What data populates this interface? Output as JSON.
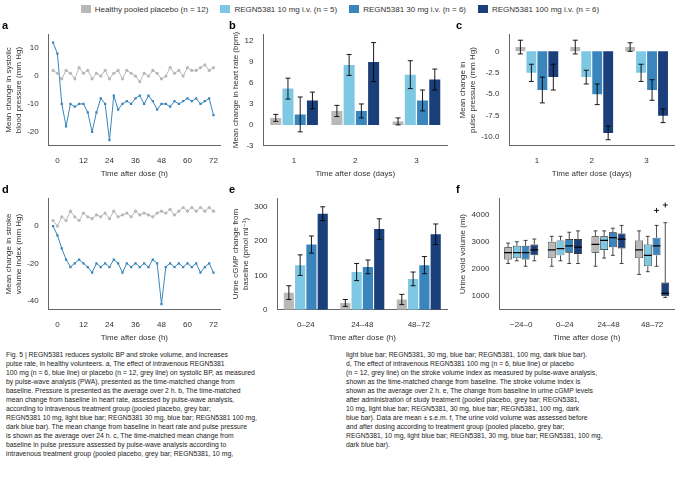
{
  "chart_data": [
    {
      "type": "line",
      "title": "a",
      "x_label": "Time after dose (h)",
      "y_label": "Mean change in systolic\nblood pressure (mm Hg)",
      "xlim": [
        -4,
        75
      ],
      "xticks": [
        0,
        12,
        24,
        36,
        48,
        60,
        72
      ],
      "ylim": [
        -25,
        15
      ],
      "yticks": [
        -20,
        -10,
        0,
        10
      ],
      "grid": false,
      "x": [
        -2,
        0,
        2,
        4,
        6,
        8,
        10,
        12,
        14,
        16,
        18,
        20,
        22,
        24,
        26,
        28,
        30,
        32,
        34,
        36,
        38,
        40,
        42,
        44,
        46,
        48,
        50,
        52,
        54,
        56,
        58,
        60,
        62,
        64,
        66,
        68,
        70,
        72
      ],
      "series": [
        {
          "color": "#b8b8b8",
          "marker": "circle",
          "values": [
            2,
            1,
            -1,
            2,
            1,
            -1,
            3,
            1,
            2,
            -1,
            1,
            0,
            2,
            -1,
            1,
            2,
            -1,
            2,
            1,
            0,
            -2,
            1,
            0,
            2,
            1,
            -1,
            0,
            3,
            1,
            2,
            0,
            3,
            2,
            2,
            3,
            4,
            2,
            3
          ]
        },
        {
          "color": "#3a86bc",
          "marker": "square",
          "values": [
            12,
            8,
            -10,
            -18,
            -10,
            -11,
            -10,
            -10,
            -13,
            -20,
            -13,
            -8,
            -10,
            -23,
            -7,
            -12,
            -10,
            -9,
            -10,
            -8,
            -7,
            -10,
            -7,
            -9,
            -12,
            -10,
            -10,
            -11,
            -9,
            -10,
            -9,
            -8,
            -9,
            -8,
            -10,
            -9,
            -8,
            -14
          ]
        }
      ]
    },
    {
      "type": "bar",
      "title": "b",
      "x_label": "Time after dose (days)",
      "y_label": "Mean change in heart rate (bpm)",
      "categories": [
        1,
        2,
        3
      ],
      "ylim": [
        -3,
        13
      ],
      "yticks": [
        -3,
        0,
        3,
        6,
        9,
        12
      ],
      "grid": false,
      "series": [
        {
          "name": "Healthy pooled placebo (n = 12)",
          "color": "#b8b8b8",
          "values": [
            1.0,
            2.0,
            0.5
          ],
          "errors": [
            0.5,
            0.8,
            0.5
          ]
        },
        {
          "name": "REGN5381 10 mg i.v. (n = 5)",
          "color": "#7ec8e3",
          "values": [
            5.2,
            8.6,
            7.2
          ],
          "errors": [
            1.5,
            1.5,
            2.0
          ]
        },
        {
          "name": "REGN5381 30 mg i.v. (n = 6)",
          "color": "#3a86bc",
          "values": [
            1.5,
            2.0,
            3.5
          ],
          "errors": [
            2.5,
            1.0,
            1.5
          ]
        },
        {
          "name": "REGN5381 100 mg i.v. (n = 6)",
          "color": "#1a3f7a",
          "values": [
            3.5,
            9.0,
            6.5
          ],
          "errors": [
            1.2,
            2.8,
            1.5
          ]
        }
      ]
    },
    {
      "type": "bar",
      "title": "c",
      "x_label": "Time after dose (days)",
      "y_label": "Mean change in\npulse pressure (mm Hg)",
      "categories": [
        1,
        2,
        3
      ],
      "ylim": [
        -11,
        2
      ],
      "yticks": [
        {
          "value": -10.0,
          "label": "-10.0"
        },
        -7.5,
        {
          "value": -5.0,
          "label": "-5.0"
        },
        -2.5,
        0
      ],
      "grid": false,
      "series": [
        {
          "name": "Healthy pooled placebo (n = 12)",
          "color": "#b8b8b8",
          "values": [
            0.5,
            0.5,
            0.5
          ],
          "errors": [
            0.8,
            0.8,
            0.5
          ]
        },
        {
          "name": "REGN5381 10 mg i.v. (n = 5)",
          "color": "#7ec8e3",
          "values": [
            -2.5,
            -3.0,
            -2.5
          ],
          "errors": [
            1.0,
            0.8,
            1.0
          ]
        },
        {
          "name": "REGN5381 30 mg i.v. (n = 6)",
          "color": "#3a86bc",
          "values": [
            -4.5,
            -5.0,
            -4.5
          ],
          "errors": [
            1.5,
            1.2,
            1.2
          ]
        },
        {
          "name": "REGN5381 100 mg i.v. (n = 6)",
          "color": "#1a3f7a",
          "values": [
            -3.0,
            -9.5,
            -7.5
          ],
          "errors": [
            1.5,
            0.8,
            0.8
          ]
        }
      ]
    },
    {
      "type": "line",
      "title": "d",
      "x_label": "Time after dose (h)",
      "y_label": "Mean change in stroke\nvolume index (mm Hg)",
      "xlim": [
        -4,
        75
      ],
      "xticks": [
        0,
        12,
        24,
        36,
        48,
        60,
        72
      ],
      "ylim": [
        -45,
        15
      ],
      "yticks": [
        -40,
        -20,
        0
      ],
      "grid": false,
      "x": [
        -2,
        0,
        2,
        4,
        6,
        8,
        10,
        12,
        14,
        16,
        18,
        20,
        22,
        24,
        26,
        28,
        30,
        32,
        34,
        36,
        38,
        40,
        42,
        44,
        46,
        48,
        50,
        52,
        54,
        56,
        58,
        60,
        62,
        64,
        66,
        68,
        70,
        72
      ],
      "series": [
        {
          "color": "#b8b8b8",
          "marker": "circle",
          "values": [
            3,
            0,
            5,
            3,
            8,
            5,
            3,
            7,
            5,
            4,
            6,
            5,
            7,
            4,
            8,
            5,
            6,
            7,
            5,
            8,
            6,
            7,
            6,
            5,
            7,
            8,
            7,
            9,
            6,
            8,
            10,
            8,
            10,
            8,
            10,
            8,
            10,
            8
          ]
        },
        {
          "color": "#3a86bc",
          "marker": "square",
          "values": [
            0,
            -5,
            -12,
            -18,
            -22,
            -20,
            -18,
            -20,
            -22,
            -25,
            -20,
            -22,
            -20,
            -22,
            -18,
            -20,
            -25,
            -20,
            -22,
            -20,
            -22,
            -20,
            -22,
            -18,
            -20,
            -42,
            -22,
            -20,
            -22,
            -20,
            -22,
            -20,
            -22,
            -20,
            -25,
            -22,
            -20,
            -25
          ]
        }
      ]
    },
    {
      "type": "bar",
      "title": "e",
      "x_label": "Time after dose (h)",
      "y_label": "Urine cGMP change from\nbaseline (pmol ml⁻¹)",
      "categories": [
        "0–24",
        "24–48",
        "48–72"
      ],
      "ylim": [
        0,
        325
      ],
      "yticks": [
        0,
        100,
        200,
        300
      ],
      "grid": false,
      "series": [
        {
          "name": "Healthy pooled placebo (n = 12)",
          "color": "#b8b8b8",
          "values": [
            50,
            20,
            30
          ],
          "errors": [
            20,
            10,
            15
          ]
        },
        {
          "name": "REGN5381 10 mg i.v. (n = 5)",
          "color": "#7ec8e3",
          "values": [
            130,
            110,
            90
          ],
          "errors": [
            30,
            25,
            20
          ]
        },
        {
          "name": "REGN5381 30 mg i.v. (n = 6)",
          "color": "#3a86bc",
          "values": [
            190,
            125,
            130
          ],
          "errors": [
            25,
            20,
            25
          ]
        },
        {
          "name": "REGN5381 100 mg i.v. (n = 6)",
          "color": "#1a3f7a",
          "values": [
            280,
            235,
            220
          ],
          "errors": [
            20,
            30,
            30
          ]
        }
      ]
    },
    {
      "type": "box",
      "title": "f",
      "x_label": "Time after dose (h)",
      "y_label": "Urine void volume (ml)",
      "categories": [
        "−24–0",
        "0–24",
        "24–48",
        "48–72"
      ],
      "ylim": [
        500,
        4600
      ],
      "yticks": [
        1000,
        2000,
        3000,
        4000
      ],
      "grid": false,
      "series": [
        {
          "name": "Healthy pooled placebo (n = 12)",
          "color": "#b8b8b8",
          "boxes": [
            {
              "med": 2600,
              "q1": 2350,
              "q3": 2800,
              "whislo": 2200,
              "whishi": 2950
            },
            {
              "med": 2700,
              "q1": 2400,
              "q3": 3000,
              "whislo": 2100,
              "whishi": 3200
            },
            {
              "med": 2900,
              "q1": 2600,
              "q3": 3200,
              "whislo": 2100,
              "whishi": 3400
            },
            {
              "med": 2700,
              "q1": 2400,
              "q3": 3050,
              "whislo": 1800,
              "whishi": 3400
            }
          ],
          "outliers": [
            [],
            [],
            [],
            []
          ]
        },
        {
          "name": "REGN5381 10 mg i.v. (n = 5)",
          "color": "#7ec8e3",
          "boxes": [
            {
              "med": 2600,
              "q1": 2400,
              "q3": 2850,
              "whislo": 2300,
              "whishi": 3000
            },
            {
              "med": 2750,
              "q1": 2500,
              "q3": 3050,
              "whislo": 2300,
              "whishi": 3200
            },
            {
              "med": 3050,
              "q1": 2700,
              "q3": 3200,
              "whislo": 2400,
              "whishi": 3400
            },
            {
              "med": 2500,
              "q1": 2100,
              "q3": 2900,
              "whislo": 1900,
              "whishi": 3200
            }
          ],
          "outliers": [
            [],
            [],
            [],
            []
          ]
        },
        {
          "name": "REGN5381 30 mg i.v. (n = 6)",
          "color": "#3a86bc",
          "boxes": [
            {
              "med": 2600,
              "q1": 2350,
              "q3": 2850,
              "whislo": 2100,
              "whishi": 3050
            },
            {
              "med": 2850,
              "q1": 2600,
              "q3": 3100,
              "whislo": 2200,
              "whishi": 3350
            },
            {
              "med": 3150,
              "q1": 2800,
              "q3": 3350,
              "whislo": 2500,
              "whishi": 3500
            },
            {
              "med": 2850,
              "q1": 2500,
              "q3": 3150,
              "whislo": 2100,
              "whishi": 3600
            }
          ],
          "outliers": [
            [],
            [],
            [],
            [
              4150
            ]
          ]
        },
        {
          "name": "REGN5381 100 mg i.v. (n = 6)",
          "color": "#1a3f7a",
          "boxes": [
            {
              "med": 2700,
              "q1": 2500,
              "q3": 2900,
              "whislo": 2300,
              "whishi": 3100
            },
            {
              "med": 2800,
              "q1": 2550,
              "q3": 3100,
              "whislo": 2200,
              "whishi": 3400
            },
            {
              "med": 3100,
              "q1": 2750,
              "q3": 3300,
              "whislo": 2200,
              "whishi": 3600
            },
            {
              "med": 1100,
              "q1": 1000,
              "q3": 1500,
              "whislo": 950,
              "whishi": 3700
            }
          ],
          "outliers": [
            [],
            [],
            [],
            [
              4350
            ]
          ]
        }
      ]
    }
  ],
  "legend": "top",
  "annotations": [
    "Fig. 5 | REGN5381 reduces systolic BP and stroke volume, and increases\npulse rate, in healthy volunteers. a, The effect of intravenous REGN5381\n100 mg (n = 6, blue line) or placebo (n = 12, grey line) on systolic BP, as measured\nby pulse-wave analysis (PWA), presented as the time-matched change from\nbaseline. Pressure is presented as the average over 2 h. b, The time-matched\nmean change from baseline in heart rate, assessed by pulse-wave analysis,\naccording to intravenous treatment group (pooled placebo, grey bar;\nREGN5381 10 mg, light blue bar; REGN5381 30 mg, blue bar; REGN5381 100 mg,\ndark blue bar). The mean change from baseline in heart rate and pulse pressure\nis shown as the average over 24 h. c, The time-matched mean change from\nbaseline in pulse pressure assessed by pulse-wave analysis according to\nintravenous treatment group (pooled placebo, grey bar; REGN5381, 10 mg,",
    "light blue bar; REGN5381, 30 mg, blue bar; REGN5381, 100 mg, dark blue bar).\nd, The effect of intravenous REGN5381 100 mg (n = 6, blue line) or placebo\n(n = 12, grey line) on the stroke volume index as measured by pulse-wave analysis,\nshown as the time-matched change from baseline. The stroke volume index is\nshown as the average over 2 h. e, The change from baseline in urine cGMP levels\nafter administration of study treatment (pooled placebo, grey bar; REGN5381,\n10 mg, light blue bar; REGN5381, 30 mg, blue bar; REGN5381, 100 mg, dark\nblue bar). Data are mean ± s.e.m. f, The urine void volume was assessed before\nand after dosing according to treatment group (pooled placebo, grey bar;\nREGN5381, 10 mg, light blue bar; REGN5381, 30 mg, blue bar; REGN5381, 100 mg,\ndark blue bar)."
  ]
}
